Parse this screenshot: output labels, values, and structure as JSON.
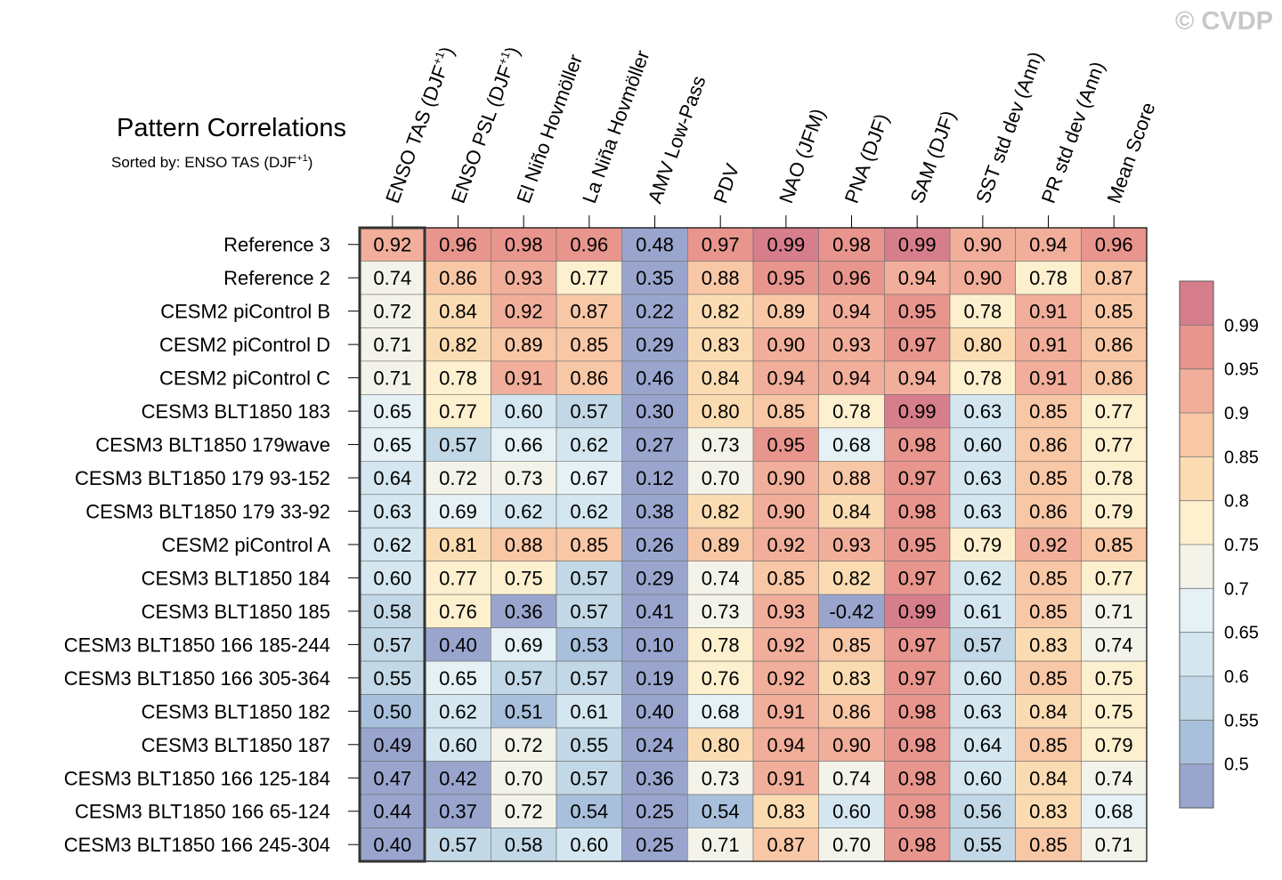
{
  "watermark": "© CVDP",
  "chart_data": {
    "type": "heatmap",
    "title": "Pattern Correlations",
    "subtitle_prefix": "Sorted by: ENSO TAS (DJF",
    "subtitle_sup": "+1",
    "subtitle_suffix": ")",
    "columns": [
      {
        "label": "ENSO TAS (DJF",
        "sup": "+1",
        "suffix": ")"
      },
      {
        "label": "ENSO PSL (DJF",
        "sup": "+1",
        "suffix": ")"
      },
      {
        "label": "El Niño Hovmöller",
        "sup": "",
        "suffix": ""
      },
      {
        "label": "La Niña Hovmöller",
        "sup": "",
        "suffix": ""
      },
      {
        "label": "AMV Low-Pass",
        "sup": "",
        "suffix": ""
      },
      {
        "label": "PDV",
        "sup": "",
        "suffix": ""
      },
      {
        "label": "NAO (JFM)",
        "sup": "",
        "suffix": ""
      },
      {
        "label": "PNA (DJF)",
        "sup": "",
        "suffix": ""
      },
      {
        "label": "SAM (DJF)",
        "sup": "",
        "suffix": ""
      },
      {
        "label": "SST std dev (Ann)",
        "sup": "",
        "suffix": ""
      },
      {
        "label": "PR std dev (Ann)",
        "sup": "",
        "suffix": ""
      },
      {
        "label": "Mean Score",
        "sup": "",
        "suffix": ""
      }
    ],
    "rows": [
      "Reference 3",
      "Reference 2",
      "CESM2 piControl B",
      "CESM2 piControl D",
      "CESM2 piControl C",
      "CESM3 BLT1850 183",
      "CESM3 BLT1850 179wave",
      "CESM3 BLT1850 179 93-152",
      "CESM3 BLT1850 179 33-92",
      "CESM2 piControl A",
      "CESM3 BLT1850 184",
      "CESM3 BLT1850 185",
      "CESM3 BLT1850 166 185-244",
      "CESM3 BLT1850 166 305-364",
      "CESM3 BLT1850 182",
      "CESM3 BLT1850 187",
      "CESM3 BLT1850 166 125-184",
      "CESM3 BLT1850 166 65-124",
      "CESM3 BLT1850 166 245-304"
    ],
    "values": [
      [
        "0.92",
        "0.96",
        "0.98",
        "0.96",
        "0.48",
        "0.97",
        "0.99",
        "0.98",
        "0.99",
        "0.90",
        "0.94",
        "0.96"
      ],
      [
        "0.74",
        "0.86",
        "0.93",
        "0.77",
        "0.35",
        "0.88",
        "0.95",
        "0.96",
        "0.94",
        "0.90",
        "0.78",
        "0.87"
      ],
      [
        "0.72",
        "0.84",
        "0.92",
        "0.87",
        "0.22",
        "0.82",
        "0.89",
        "0.94",
        "0.95",
        "0.78",
        "0.91",
        "0.85"
      ],
      [
        "0.71",
        "0.82",
        "0.89",
        "0.85",
        "0.29",
        "0.83",
        "0.90",
        "0.93",
        "0.97",
        "0.80",
        "0.91",
        "0.86"
      ],
      [
        "0.71",
        "0.78",
        "0.91",
        "0.86",
        "0.46",
        "0.84",
        "0.94",
        "0.94",
        "0.94",
        "0.78",
        "0.91",
        "0.86"
      ],
      [
        "0.65",
        "0.77",
        "0.60",
        "0.57",
        "0.30",
        "0.80",
        "0.85",
        "0.78",
        "0.99",
        "0.63",
        "0.85",
        "0.77"
      ],
      [
        "0.65",
        "0.57",
        "0.66",
        "0.62",
        "0.27",
        "0.73",
        "0.95",
        "0.68",
        "0.98",
        "0.60",
        "0.86",
        "0.77"
      ],
      [
        "0.64",
        "0.72",
        "0.73",
        "0.67",
        "0.12",
        "0.70",
        "0.90",
        "0.88",
        "0.97",
        "0.63",
        "0.85",
        "0.78"
      ],
      [
        "0.63",
        "0.69",
        "0.62",
        "0.62",
        "0.38",
        "0.82",
        "0.90",
        "0.84",
        "0.98",
        "0.63",
        "0.86",
        "0.79"
      ],
      [
        "0.62",
        "0.81",
        "0.88",
        "0.85",
        "0.26",
        "0.89",
        "0.92",
        "0.93",
        "0.95",
        "0.79",
        "0.92",
        "0.85"
      ],
      [
        "0.60",
        "0.77",
        "0.75",
        "0.57",
        "0.29",
        "0.74",
        "0.85",
        "0.82",
        "0.97",
        "0.62",
        "0.85",
        "0.77"
      ],
      [
        "0.58",
        "0.76",
        "0.36",
        "0.57",
        "0.41",
        "0.73",
        "0.93",
        "-0.42",
        "0.99",
        "0.61",
        "0.85",
        "0.71"
      ],
      [
        "0.57",
        "0.40",
        "0.69",
        "0.53",
        "0.10",
        "0.78",
        "0.92",
        "0.85",
        "0.97",
        "0.57",
        "0.83",
        "0.74"
      ],
      [
        "0.55",
        "0.65",
        "0.57",
        "0.57",
        "0.19",
        "0.76",
        "0.92",
        "0.83",
        "0.97",
        "0.60",
        "0.85",
        "0.75"
      ],
      [
        "0.50",
        "0.62",
        "0.51",
        "0.61",
        "0.40",
        "0.68",
        "0.91",
        "0.86",
        "0.98",
        "0.63",
        "0.84",
        "0.75"
      ],
      [
        "0.49",
        "0.60",
        "0.72",
        "0.55",
        "0.24",
        "0.80",
        "0.94",
        "0.90",
        "0.98",
        "0.64",
        "0.85",
        "0.79"
      ],
      [
        "0.47",
        "0.42",
        "0.70",
        "0.57",
        "0.36",
        "0.73",
        "0.91",
        "0.74",
        "0.98",
        "0.60",
        "0.84",
        "0.74"
      ],
      [
        "0.44",
        "0.37",
        "0.72",
        "0.54",
        "0.25",
        "0.54",
        "0.83",
        "0.60",
        "0.98",
        "0.56",
        "0.83",
        "0.68"
      ],
      [
        "0.40",
        "0.57",
        "0.58",
        "0.60",
        "0.25",
        "0.71",
        "0.87",
        "0.70",
        "0.98",
        "0.55",
        "0.85",
        "0.71"
      ]
    ],
    "highlighted_column": "ENSO TAS (DJF+1)",
    "colorbar": {
      "levels": [
        0.5,
        0.55,
        0.6,
        0.65,
        0.7,
        0.75,
        0.8,
        0.85,
        0.9,
        0.95,
        0.99
      ],
      "tick_labels": [
        "0.5",
        "0.55",
        "0.6",
        "0.65",
        "0.7",
        "0.75",
        "0.8",
        "0.85",
        "0.9",
        "0.95",
        "0.99"
      ],
      "colors": [
        "#99a5cd",
        "#a8c0db",
        "#c2d8e6",
        "#d4e7f0",
        "#e5f1f5",
        "#f4f3ea",
        "#fdf0cf",
        "#fbdcb2",
        "#f8c7a6",
        "#f1ae9a",
        "#e8958d",
        "#d77e8c"
      ]
    }
  }
}
